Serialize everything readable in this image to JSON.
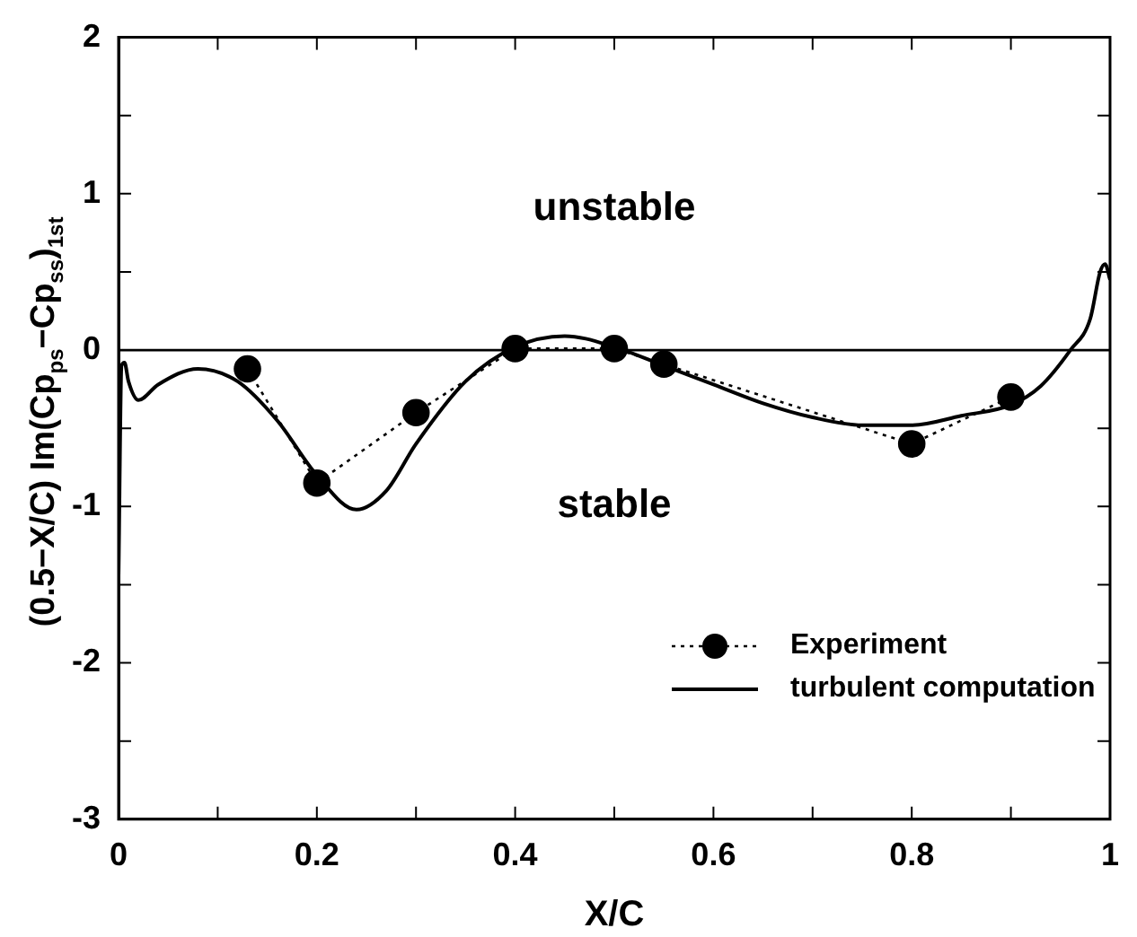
{
  "chart_data": {
    "type": "line",
    "xlabel": "X/C",
    "ylabel": "(0.5−X/C) Im(Cp$_{ps}$−Cp$_{ss}$)$_{1st}$",
    "xlim": [
      0,
      1
    ],
    "xticks": [
      0,
      {
        "value": 0.1,
        "label": null
      },
      0.2,
      {
        "value": 0.3,
        "label": null
      },
      0.4,
      {
        "value": 0.5,
        "label": null
      },
      0.6,
      {
        "value": 0.7,
        "label": null
      },
      0.8,
      {
        "value": 0.9,
        "label": null
      },
      1
    ],
    "ylim": [
      -3,
      2
    ],
    "yticks": [
      -3,
      {
        "value": -2.5,
        "label": null
      },
      -2,
      {
        "value": -1.5,
        "label": null
      },
      -1,
      {
        "value": -0.5,
        "label": null
      },
      0,
      {
        "value": 0.5,
        "label": null
      },
      1,
      {
        "value": 1.5,
        "label": null
      },
      2
    ],
    "legend": "bottom right",
    "ref_lines": [
      {
        "axis": "y",
        "value": 0,
        "color": "#000000"
      }
    ],
    "annotations": [
      "unstable",
      "stable"
    ],
    "series": [
      {
        "name": "Experiment",
        "type": "scatter",
        "color": "#000000",
        "marker": "circle",
        "line_style": "dotted",
        "x": [
          0.13,
          0.2,
          0.3,
          0.4,
          0.5,
          0.55,
          0.8,
          0.9
        ],
        "values": [
          -0.12,
          -0.85,
          -0.4,
          0.01,
          0.01,
          -0.09,
          -0.6,
          -0.3
        ]
      },
      {
        "name": "turbulent computation",
        "type": "line",
        "color": "#000000",
        "marker": "none",
        "line_style": "solid",
        "x": [
          0,
          0.003,
          0.006,
          0.01,
          0.02,
          0.04,
          0.08,
          0.12,
          0.16,
          0.2,
          0.24,
          0.27,
          0.3,
          0.35,
          0.4,
          0.45,
          0.5,
          0.55,
          0.6,
          0.65,
          0.7,
          0.75,
          0.8,
          0.85,
          0.9,
          0.93,
          0.96,
          0.98,
          0.99,
          0.995,
          1
        ],
        "values": [
          -1.45,
          -0.1,
          -0.08,
          -0.2,
          -0.32,
          -0.22,
          -0.12,
          -0.2,
          -0.45,
          -0.8,
          -1.02,
          -0.9,
          -0.6,
          -0.2,
          0.02,
          0.09,
          0.02,
          -0.1,
          -0.22,
          -0.34,
          -0.43,
          -0.48,
          -0.48,
          -0.42,
          -0.35,
          -0.23,
          0,
          0.2,
          0.5,
          0.55,
          0.45
        ]
      }
    ]
  }
}
